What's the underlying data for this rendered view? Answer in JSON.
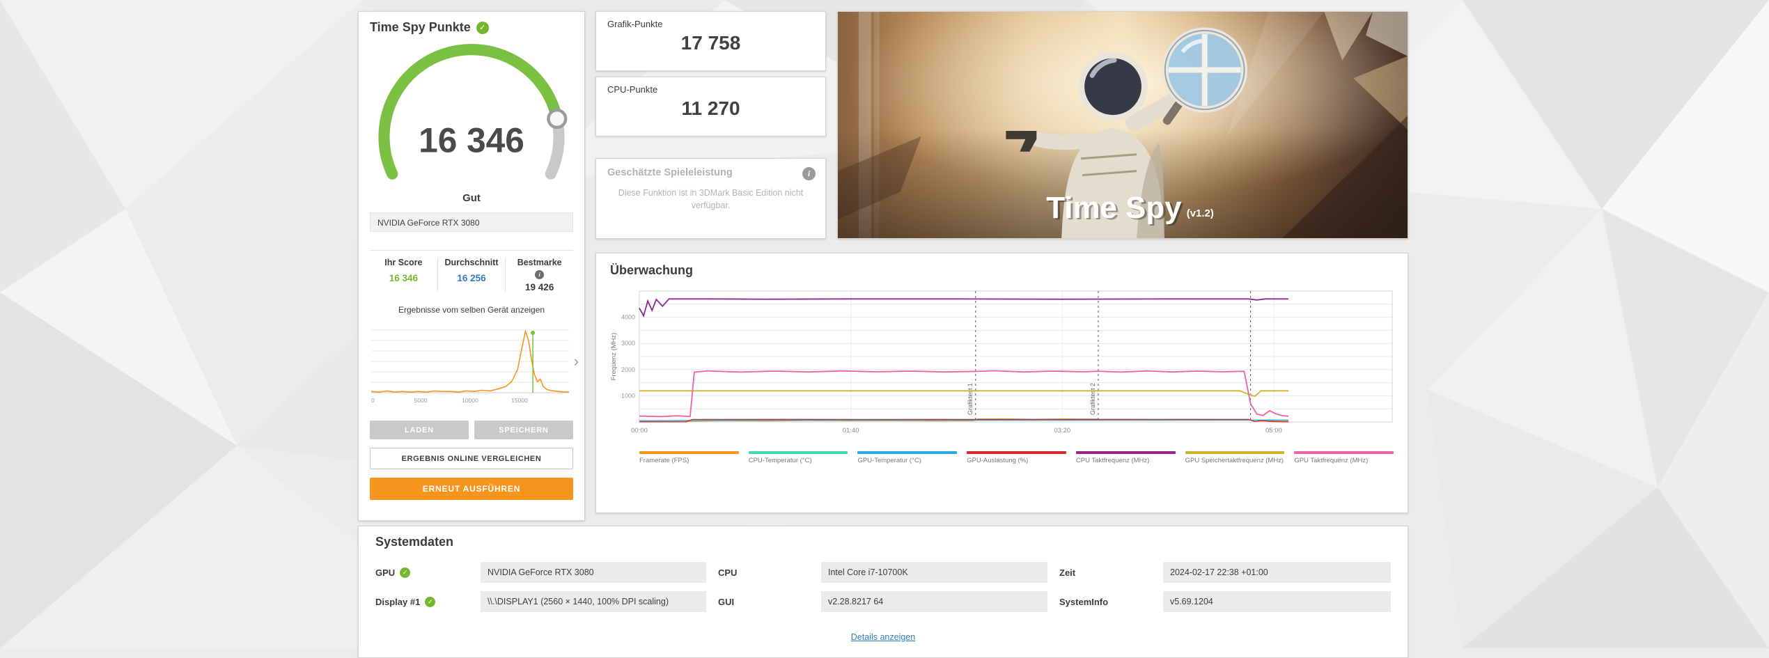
{
  "colors": {
    "accent_orange": "#f7941e",
    "accent_green": "#74b72e",
    "accent_blue": "#3779b8",
    "gauge_green": "#7ac043"
  },
  "result_panel": {
    "title": "Time Spy Punkte",
    "score": "16 346",
    "rating": "Gut",
    "gpu_select_value": "NVIDIA GeForce RTX 3080",
    "score_table": {
      "col1_label": "Ihr Score",
      "col1_value": "16 346",
      "col2_label": "Durchschnitt",
      "col2_value": "16 256",
      "col3_label": "Bestmarke",
      "col3_value": "19 426"
    },
    "same_device_link": "Ergebnisse vom selben Gerät anzeigen",
    "histogram": {
      "type": "line",
      "x_range": [
        0,
        20000
      ],
      "y_range": [
        0,
        100
      ],
      "xticks": [
        "0",
        "5000",
        "10000",
        "15000"
      ],
      "xtick_values": [
        0,
        5000,
        10000,
        15000
      ],
      "marker_value": 16346,
      "line_color": "#f7941e",
      "marker_color": "#7ac043",
      "points": [
        [
          0,
          2
        ],
        [
          800,
          1
        ],
        [
          1600,
          3
        ],
        [
          2400,
          1
        ],
        [
          3200,
          2
        ],
        [
          4000,
          1
        ],
        [
          4800,
          2
        ],
        [
          5600,
          1
        ],
        [
          6400,
          3
        ],
        [
          7200,
          2
        ],
        [
          8000,
          2
        ],
        [
          8800,
          1
        ],
        [
          9600,
          3
        ],
        [
          10400,
          2
        ],
        [
          11200,
          4
        ],
        [
          12000,
          3
        ],
        [
          12800,
          6
        ],
        [
          13600,
          10
        ],
        [
          14200,
          18
        ],
        [
          14800,
          38
        ],
        [
          15200,
          70
        ],
        [
          15600,
          100
        ],
        [
          15900,
          86
        ],
        [
          16200,
          55
        ],
        [
          16500,
          30
        ],
        [
          16800,
          18
        ],
        [
          17100,
          22
        ],
        [
          17400,
          10
        ],
        [
          17800,
          5
        ],
        [
          18400,
          3
        ],
        [
          19000,
          2
        ],
        [
          19600,
          1
        ],
        [
          20000,
          1
        ]
      ]
    },
    "buttons": {
      "load": "LADEN",
      "save": "SPEICHERN",
      "compare_online": "ERGEBNIS ONLINE VERGLEICHEN",
      "run_again": "ERNEUT AUSFÜHREN"
    }
  },
  "subscores": [
    {
      "label": "Grafik-Punkte",
      "value": "17 758"
    },
    {
      "label": "CPU-Punkte",
      "value": "11 270"
    }
  ],
  "estimated_game_performance": {
    "title": "Geschätzte Spieleleistung",
    "body": "Diese Funktion ist in 3DMark Basic Edition nicht verfügbar."
  },
  "hero": {
    "title": "Time Spy",
    "version": "(v1.2)"
  },
  "monitoring": {
    "title": "Überwachung",
    "chart_data": {
      "type": "line",
      "ylabel": "Frequenz (MHz)",
      "ylim": [
        0,
        5000
      ],
      "yticks": [
        1000,
        2000,
        3000,
        4000
      ],
      "x_seconds_max": 356,
      "xticks": [
        {
          "t": 0,
          "label": "00:00"
        },
        {
          "t": 100,
          "label": "01:40"
        },
        {
          "t": 200,
          "label": "03:20"
        },
        {
          "t": 300,
          "label": "05:00"
        }
      ],
      "section_markers": [
        {
          "t": 159,
          "label": "Grafiktest 1"
        },
        {
          "t": 217,
          "label": "Grafiktest 2"
        },
        {
          "t": 289,
          "label": ""
        }
      ],
      "series": [
        {
          "name": "Framerate (FPS)",
          "color": "#f7941e",
          "points": [
            [
              0,
              1
            ],
            [
              20,
              2
            ],
            [
              25,
              32
            ],
            [
              40,
              46
            ],
            [
              60,
              38
            ],
            [
              80,
              52
            ],
            [
              100,
              43
            ],
            [
              120,
              49
            ],
            [
              140,
              41
            ],
            [
              158,
              44
            ],
            [
              160,
              112
            ],
            [
              172,
              120
            ],
            [
              186,
              104
            ],
            [
              200,
              116
            ],
            [
              216,
              108
            ],
            [
              218,
              96
            ],
            [
              230,
              104
            ],
            [
              244,
              92
            ],
            [
              258,
              101
            ],
            [
              274,
              95
            ],
            [
              288,
              98
            ],
            [
              291,
              18
            ],
            [
              296,
              40
            ],
            [
              301,
              34
            ],
            [
              307,
              30
            ]
          ]
        },
        {
          "name": "CPU-Temperatur (°C)",
          "color": "#3fd6b0",
          "points": [
            [
              0,
              42
            ],
            [
              20,
              52
            ],
            [
              60,
              58
            ],
            [
              120,
              62
            ],
            [
              180,
              61
            ],
            [
              240,
              64
            ],
            [
              288,
              66
            ],
            [
              295,
              74
            ],
            [
              307,
              71
            ]
          ]
        },
        {
          "name": "GPU-Temperatur (°C)",
          "color": "#29abe2",
          "points": [
            [
              0,
              44
            ],
            [
              30,
              58
            ],
            [
              80,
              67
            ],
            [
              140,
              71
            ],
            [
              200,
              73
            ],
            [
              260,
              74
            ],
            [
              289,
              71
            ],
            [
              307,
              64
            ]
          ]
        },
        {
          "name": "GPU-Auslastung (%)",
          "color": "#d9272e",
          "points": [
            [
              0,
              4
            ],
            [
              22,
              6
            ],
            [
              25,
              96
            ],
            [
              60,
              98
            ],
            [
              100,
              97
            ],
            [
              140,
              98
            ],
            [
              180,
              97
            ],
            [
              220,
              98
            ],
            [
              260,
              97
            ],
            [
              288,
              96
            ],
            [
              291,
              12
            ],
            [
              294,
              55
            ],
            [
              298,
              20
            ],
            [
              302,
              8
            ],
            [
              307,
              4
            ]
          ]
        },
        {
          "name": "CPU Taktfrequenz (MHz)",
          "color": "#93278f",
          "points": [
            [
              0,
              4350
            ],
            [
              2,
              4050
            ],
            [
              4,
              4620
            ],
            [
              6,
              4260
            ],
            [
              8,
              4680
            ],
            [
              11,
              4420
            ],
            [
              14,
              4700
            ],
            [
              30,
              4700
            ],
            [
              60,
              4690
            ],
            [
              100,
              4700
            ],
            [
              150,
              4700
            ],
            [
              200,
              4690
            ],
            [
              250,
              4700
            ],
            [
              288,
              4700
            ],
            [
              292,
              4660
            ],
            [
              296,
              4700
            ],
            [
              307,
              4700
            ]
          ]
        },
        {
          "name": "GPU Speichertaktfrequenz (MHz)",
          "color": "#cdb42c",
          "points": [
            [
              0,
              1188
            ],
            [
              284,
              1188
            ],
            [
              288,
              1060
            ],
            [
              291,
              980
            ],
            [
              294,
              1188
            ],
            [
              307,
              1188
            ]
          ]
        },
        {
          "name": "GPU Taktfrequenz (MHz)",
          "color": "#ef5fa7",
          "points": [
            [
              0,
              225
            ],
            [
              10,
              205
            ],
            [
              18,
              235
            ],
            [
              24,
              210
            ],
            [
              26,
              1900
            ],
            [
              32,
              1950
            ],
            [
              48,
              1905
            ],
            [
              64,
              1945
            ],
            [
              80,
              1910
            ],
            [
              96,
              1950
            ],
            [
              112,
              1915
            ],
            [
              128,
              1945
            ],
            [
              144,
              1910
            ],
            [
              159,
              1930
            ],
            [
              168,
              1955
            ],
            [
              182,
              1910
            ],
            [
              196,
              1945
            ],
            [
              210,
              1915
            ],
            [
              217,
              1940
            ],
            [
              228,
              1905
            ],
            [
              240,
              1950
            ],
            [
              252,
              1910
            ],
            [
              264,
              1945
            ],
            [
              276,
              1915
            ],
            [
              286,
              1935
            ],
            [
              289,
              700
            ],
            [
              292,
              300
            ],
            [
              295,
              250
            ],
            [
              298,
              430
            ],
            [
              301,
              310
            ],
            [
              304,
              240
            ],
            [
              307,
              220
            ]
          ]
        }
      ]
    }
  },
  "system": {
    "title": "Systemdaten",
    "fields": [
      {
        "label": "GPU",
        "verified": true,
        "value": "NVIDIA GeForce RTX 3080"
      },
      {
        "label": "CPU",
        "verified": false,
        "value": "Intel Core i7-10700K"
      },
      {
        "label": "Zeit",
        "verified": false,
        "value": "2024-02-17 22:38 +01:00"
      },
      {
        "label": "Display #1",
        "verified": true,
        "value": "\\\\.\\DISPLAY1 (2560 × 1440, 100% DPI scaling)"
      },
      {
        "label": "GUI",
        "verified": false,
        "value": "v2.28.8217 64"
      },
      {
        "label": "SystemInfo",
        "verified": false,
        "value": "v5.69.1204"
      }
    ],
    "details_link": "Details anzeigen"
  }
}
